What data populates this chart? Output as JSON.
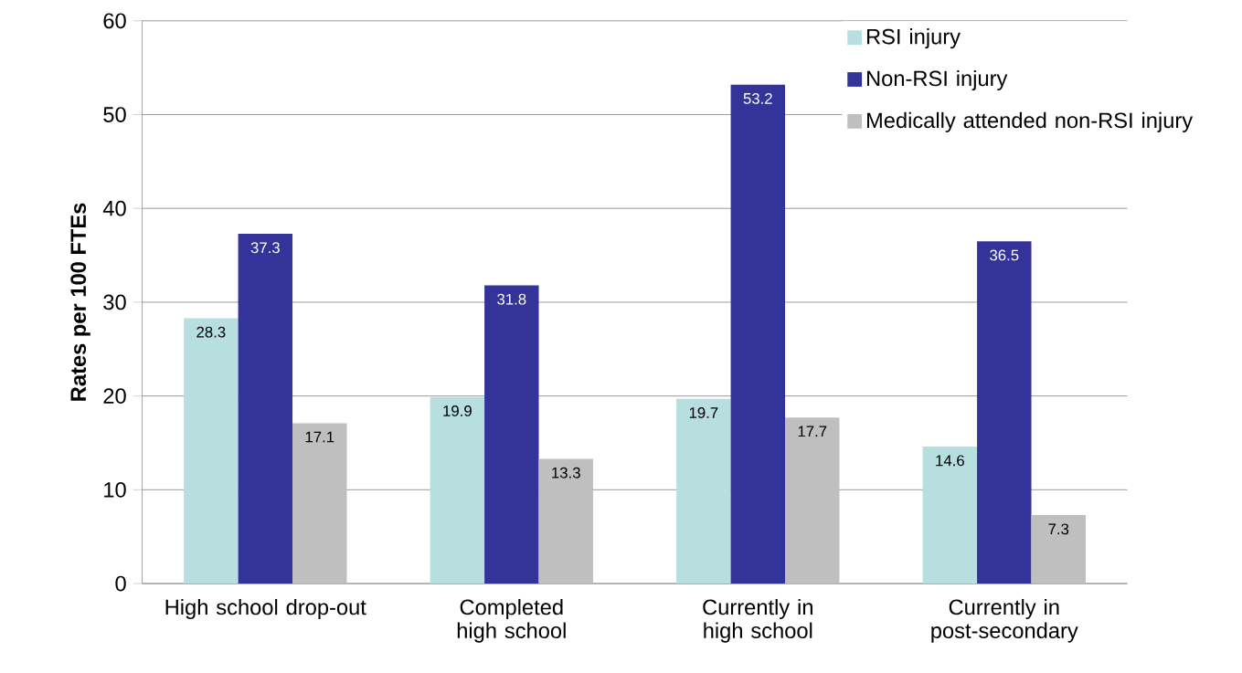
{
  "chart_data": {
    "type": "bar",
    "ylabel": "Rates per 100 FTEs",
    "categories": [
      "High school drop-out",
      "Completed high school",
      "Currently in high school",
      "Currently in post-secondary"
    ],
    "series": [
      {
        "name": "RSI injury",
        "color": "#b7dfe0",
        "values": [
          28.3,
          19.9,
          19.7,
          14.6
        ]
      },
      {
        "name": "Non-RSI injury",
        "color": "#333399",
        "values": [
          37.3,
          31.8,
          53.2,
          36.5
        ]
      },
      {
        "name": "Medically attended non-RSI injury",
        "color": "#bfbfbf",
        "values": [
          17.1,
          13.3,
          17.7,
          7.3
        ]
      }
    ],
    "ylim": [
      0,
      60
    ],
    "yticks": [
      0,
      10,
      20,
      30,
      40,
      50,
      60
    ],
    "grid": "y",
    "legend": "top right",
    "data_labels": true
  }
}
